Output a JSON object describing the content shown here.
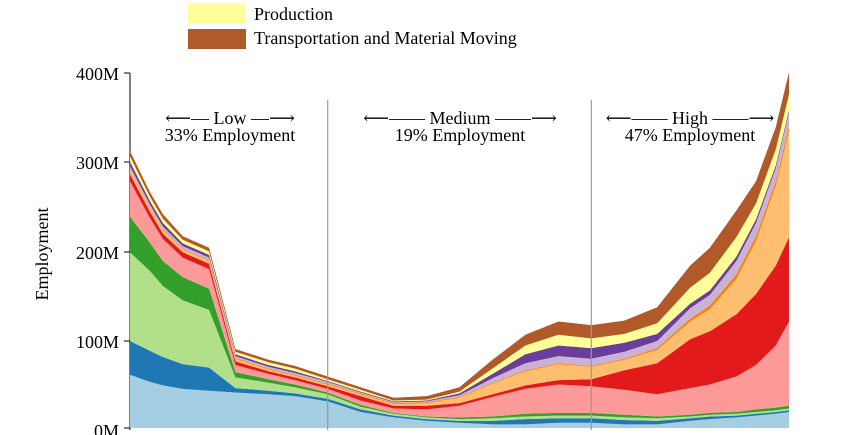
{
  "chart_data": {
    "type": "area",
    "stacked": true,
    "xlabel": "",
    "ylabel": "Employment",
    "ylim": [
      0,
      400
    ],
    "yticks": [
      "0M",
      "100M",
      "200M",
      "300M",
      "400M"
    ],
    "legend_location": "top",
    "x_domain": [
      0,
      100
    ],
    "regions": [
      {
        "label": "⟵— Low —⟶",
        "sublabel": "33% Employment",
        "x_start": 0,
        "x_end": 30
      },
      {
        "label": "⟵—— Medium ——⟶",
        "sublabel": "19% Employment",
        "x_start": 30,
        "x_end": 70
      },
      {
        "label": "⟵—— High ——⟶",
        "sublabel": "47% Employment",
        "x_start": 70,
        "x_end": 100
      }
    ],
    "x": [
      0,
      3,
      5,
      8,
      12,
      16,
      21,
      25,
      30,
      35,
      40,
      45,
      50,
      55,
      60,
      65,
      70,
      75,
      80,
      85,
      88,
      92,
      95,
      98,
      100
    ],
    "series": [
      {
        "color": "#a6cee3",
        "values": [
          60,
          52,
          48,
          44,
          42,
          40,
          38,
          36,
          30,
          18,
          12,
          8,
          6,
          4,
          4,
          6,
          6,
          4,
          4,
          8,
          10,
          12,
          14,
          16,
          18
        ]
      },
      {
        "color": "#1f78b4",
        "values": [
          38,
          35,
          32,
          28,
          26,
          5,
          4,
          3,
          3,
          3,
          2,
          2,
          2,
          4,
          6,
          5,
          5,
          5,
          4,
          3,
          3,
          2,
          2,
          2,
          2
        ]
      },
      {
        "color": "#b2df8a",
        "values": [
          100,
          90,
          80,
          72,
          65,
          12,
          9,
          7,
          5,
          3,
          2,
          2,
          2,
          3,
          3,
          3,
          3,
          3,
          3,
          2,
          2,
          2,
          2,
          2,
          2
        ]
      },
      {
        "color": "#33a02c",
        "values": [
          40,
          32,
          28,
          26,
          24,
          6,
          4,
          3,
          2,
          2,
          1,
          1,
          2,
          2,
          3,
          3,
          3,
          3,
          2,
          2,
          2,
          2,
          3,
          3,
          3
        ]
      },
      {
        "color": "#fb9a99",
        "values": [
          40,
          28,
          25,
          22,
          22,
          8,
          6,
          5,
          4,
          5,
          5,
          8,
          13,
          22,
          28,
          32,
          30,
          28,
          25,
          30,
          32,
          40,
          50,
          70,
          95
        ]
      },
      {
        "color": "#e31a1c",
        "values": [
          8,
          7,
          6,
          6,
          6,
          4,
          3,
          3,
          3,
          5,
          3,
          4,
          3,
          3,
          4,
          5,
          8,
          22,
          35,
          55,
          60,
          70,
          80,
          90,
          95
        ]
      },
      {
        "color": "#fdbf6f",
        "values": [
          5,
          4,
          4,
          3,
          3,
          3,
          2,
          2,
          2,
          2,
          2,
          3,
          6,
          12,
          16,
          18,
          14,
          12,
          15,
          20,
          25,
          40,
          60,
          90,
          120
        ]
      },
      {
        "color": "#ff7f00",
        "values": [
          1,
          1,
          1,
          1,
          1,
          1,
          1,
          1,
          1,
          1,
          1,
          1,
          1,
          1,
          1,
          1,
          1,
          1,
          2,
          3,
          4,
          5,
          5,
          5,
          5
        ]
      },
      {
        "color": "#cab2d6",
        "values": [
          3,
          3,
          3,
          3,
          3,
          2,
          2,
          2,
          2,
          1,
          1,
          1,
          2,
          5,
          8,
          8,
          8,
          8,
          8,
          12,
          12,
          15,
          15,
          15,
          15
        ]
      },
      {
        "color": "#6a3d9a",
        "values": [
          5,
          4,
          4,
          3,
          3,
          2,
          2,
          2,
          1,
          1,
          1,
          1,
          2,
          5,
          10,
          12,
          12,
          10,
          8,
          5,
          5,
          5,
          4,
          3,
          3
        ]
      },
      {
        "color": "#ffff99",
        "values": [
          6,
          5,
          5,
          4,
          4,
          3,
          3,
          3,
          2,
          2,
          1,
          1,
          2,
          6,
          10,
          12,
          11,
          10,
          12,
          18,
          20,
          22,
          18,
          18,
          18
        ]
      },
      {
        "color": "#b15928",
        "values": [
          6,
          5,
          5,
          4,
          4,
          3,
          3,
          3,
          3,
          3,
          3,
          4,
          5,
          10,
          12,
          15,
          15,
          15,
          18,
          25,
          28,
          30,
          25,
          25,
          25
        ]
      }
    ],
    "legend": [
      {
        "label": "Production",
        "color": "#ffff99"
      },
      {
        "label": "Transportation and Material Moving",
        "color": "#b15928"
      }
    ]
  }
}
